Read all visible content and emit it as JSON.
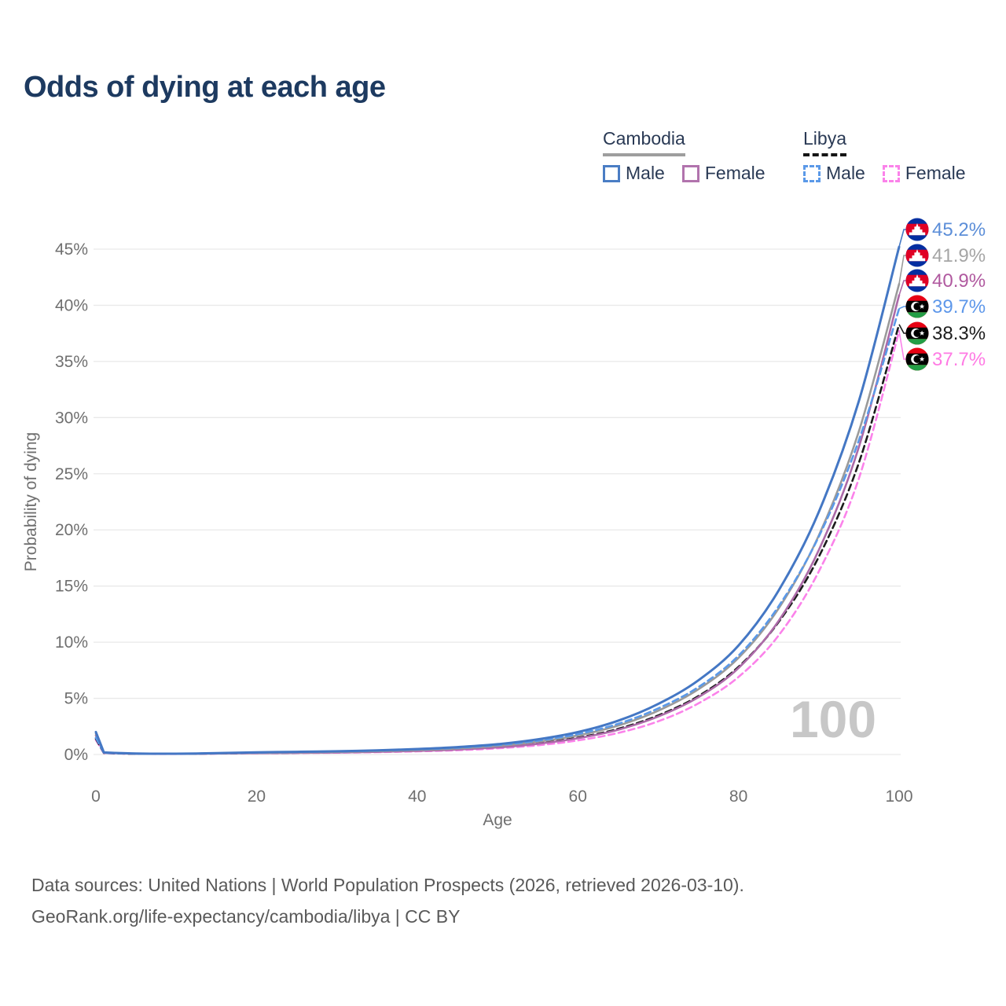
{
  "title": "Odds of dying at each age",
  "legend": {
    "groups": [
      {
        "name": "Cambodia",
        "style": "solid",
        "items": [
          {
            "label": "Male"
          },
          {
            "label": "Female"
          }
        ]
      },
      {
        "name": "Libya",
        "style": "dashed",
        "items": [
          {
            "label": "Male"
          },
          {
            "label": "Female"
          }
        ]
      }
    ]
  },
  "watermark": "100",
  "footer": {
    "line1": "Data sources: United Nations | World Population Prospects (2026, retrieved 2026-03-10).",
    "line2": "GeoRank.org/life-expectancy/cambodia/libya | CC BY"
  },
  "chart_data": {
    "type": "line",
    "title": "Odds of dying at each age",
    "xlabel": "Age",
    "ylabel": "Probability of dying",
    "xlim": [
      0,
      100
    ],
    "ylim": [
      0,
      47
    ],
    "x_ticks": [
      0,
      20,
      40,
      60,
      80,
      100
    ],
    "y_ticks": [
      0,
      5,
      10,
      15,
      20,
      25,
      30,
      35,
      40,
      45
    ],
    "y_tick_suffix": "%",
    "grid": "horizontal",
    "legend_position": "top-right",
    "ages": [
      0,
      1,
      5,
      10,
      15,
      20,
      25,
      30,
      35,
      40,
      45,
      50,
      55,
      60,
      65,
      70,
      75,
      80,
      85,
      90,
      95,
      100
    ],
    "series": [
      {
        "name": "Cambodia Male",
        "country": "Cambodia",
        "sex": "Male",
        "color": "#4477c4",
        "dashed": false,
        "flag": "cambodia",
        "end_value": 45.2,
        "end_label": "45.2%",
        "end_label_color": "#5c8ed8",
        "values": [
          2.0,
          0.18,
          0.09,
          0.07,
          0.12,
          0.19,
          0.24,
          0.29,
          0.37,
          0.49,
          0.66,
          0.92,
          1.35,
          2.0,
          3.0,
          4.5,
          6.6,
          9.7,
          14.6,
          21.6,
          31.5,
          45.2
        ]
      },
      {
        "name": "Cambodia Both sexes",
        "country": "Cambodia",
        "sex": "Both",
        "color": "#9a9a9a",
        "dashed": false,
        "flag": "cambodia",
        "end_value": 41.9,
        "end_label": "41.9%",
        "end_label_color": "#a5a5a5",
        "values": [
          1.85,
          0.17,
          0.08,
          0.065,
          0.1,
          0.15,
          0.19,
          0.23,
          0.3,
          0.4,
          0.54,
          0.77,
          1.14,
          1.7,
          2.57,
          3.9,
          5.8,
          8.6,
          13.0,
          19.5,
          28.8,
          41.9
        ]
      },
      {
        "name": "Cambodia Female",
        "country": "Cambodia",
        "sex": "Female",
        "color": "#ac6aa8",
        "dashed": false,
        "flag": "cambodia",
        "end_value": 40.9,
        "end_label": "40.9%",
        "end_label_color": "#b0599f",
        "values": [
          1.7,
          0.15,
          0.07,
          0.06,
          0.09,
          0.12,
          0.15,
          0.18,
          0.24,
          0.32,
          0.44,
          0.63,
          0.95,
          1.44,
          2.2,
          3.38,
          5.1,
          7.7,
          11.9,
          18.2,
          27.4,
          40.9
        ]
      },
      {
        "name": "Libya Male",
        "country": "Libya",
        "sex": "Male",
        "color": "#5b99e8",
        "dashed": true,
        "flag": "libya",
        "end_value": 39.7,
        "end_label": "39.7%",
        "end_label_color": "#5d97ea",
        "values": [
          1.5,
          0.14,
          0.08,
          0.06,
          0.11,
          0.17,
          0.22,
          0.27,
          0.34,
          0.45,
          0.6,
          0.84,
          1.23,
          1.82,
          2.73,
          4.1,
          6.0,
          8.8,
          13.2,
          19.4,
          28.0,
          39.7
        ]
      },
      {
        "name": "Libya Both sexes",
        "country": "Libya",
        "sex": "Both",
        "color": "#1c1c1c",
        "dashed": true,
        "flag": "libya",
        "end_value": 38.3,
        "end_label": "38.3%",
        "end_label_color": "#1d1d1d",
        "values": [
          1.4,
          0.13,
          0.065,
          0.055,
          0.09,
          0.13,
          0.16,
          0.2,
          0.26,
          0.34,
          0.47,
          0.67,
          1.0,
          1.5,
          2.28,
          3.48,
          5.2,
          7.8,
          11.8,
          17.6,
          26.0,
          38.3
        ]
      },
      {
        "name": "Libya Female",
        "country": "Libya",
        "sex": "Female",
        "color": "#fb82ea",
        "dashed": true,
        "flag": "libya",
        "end_value": 37.7,
        "end_label": "37.7%",
        "end_label_color": "#ff7ae4",
        "values": [
          1.3,
          0.12,
          0.06,
          0.05,
          0.08,
          0.11,
          0.13,
          0.16,
          0.21,
          0.28,
          0.38,
          0.55,
          0.82,
          1.25,
          1.92,
          2.95,
          4.55,
          6.9,
          10.6,
          16.3,
          24.6,
          37.7
        ]
      }
    ],
    "flag_colors": {
      "cambodia": {
        "blue": "#032ea1",
        "red": "#e00025",
        "white": "#ffffff"
      },
      "libya": {
        "red": "#e70013",
        "black": "#000000",
        "green": "#239e46",
        "white": "#ffffff"
      }
    }
  }
}
